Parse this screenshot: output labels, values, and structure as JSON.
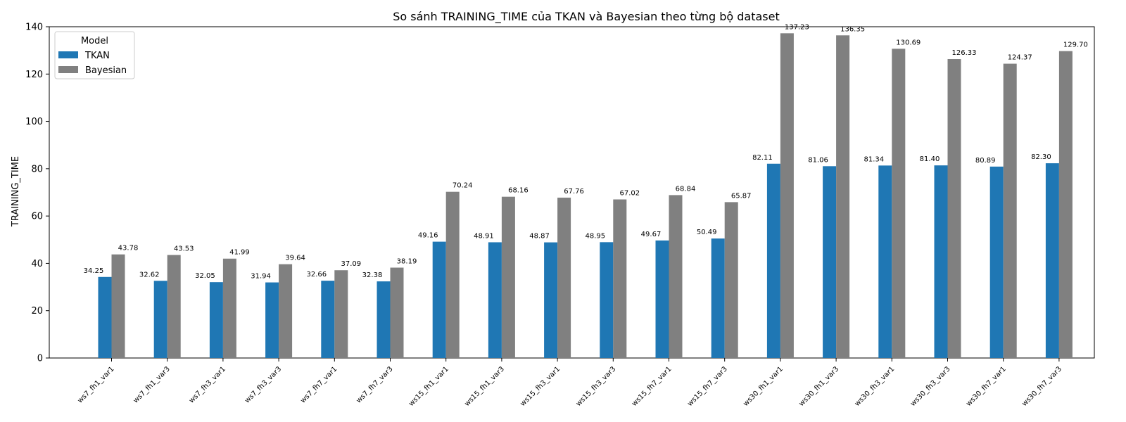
{
  "chart_data": {
    "type": "bar",
    "title": "So sánh TRAINING_TIME của TKAN và Bayesian theo từng bộ dataset",
    "xlabel": "",
    "ylabel": "TRAINING_TIME",
    "ylim": [
      0,
      140
    ],
    "yticks": [
      0,
      20,
      40,
      60,
      80,
      100,
      120,
      140
    ],
    "grid": false,
    "legend": {
      "title": "Model",
      "position": "top-left"
    },
    "categories": [
      "ws7_fh1_var1",
      "ws7_fh1_var3",
      "ws7_fh3_var1",
      "ws7_fh3_var3",
      "ws7_fh7_var1",
      "ws7_fh7_var3",
      "ws15_fh1_var1",
      "ws15_fh1_var3",
      "ws15_fh3_var1",
      "ws15_fh3_var3",
      "ws15_fh7_var1",
      "ws15_fh7_var3",
      "ws30_fh1_var1",
      "ws30_fh1_var3",
      "ws30_fh3_var1",
      "ws30_fh3_var3",
      "ws30_fh7_var1",
      "ws30_fh7_var3"
    ],
    "series": [
      {
        "name": "TKAN",
        "color": "#1f77b4",
        "values": [
          34.25,
          32.62,
          32.05,
          31.94,
          32.66,
          32.38,
          49.16,
          48.91,
          48.87,
          48.95,
          49.67,
          50.49,
          82.11,
          81.06,
          81.34,
          81.4,
          80.89,
          82.3
        ],
        "labels": [
          "34.25",
          "32.62",
          "32.05",
          "31.94",
          "32.66",
          "32.38",
          "49.16",
          "48.91",
          "48.87",
          "48.95",
          "49.67",
          "50.49",
          "82.11",
          "81.06",
          "81.34",
          "81.40",
          "80.89",
          "82.30"
        ]
      },
      {
        "name": "Bayesian",
        "color": "#808080",
        "values": [
          43.78,
          43.53,
          41.99,
          39.64,
          37.09,
          38.19,
          70.24,
          68.16,
          67.76,
          67.02,
          68.84,
          65.87,
          137.23,
          136.35,
          130.69,
          126.33,
          124.37,
          129.7
        ],
        "labels": [
          "43.78",
          "43.53",
          "41.99",
          "39.64",
          "37.09",
          "38.19",
          "70.24",
          "68.16",
          "67.76",
          "67.02",
          "68.84",
          "65.87",
          "137.23",
          "136.35",
          "130.69",
          "126.33",
          "124.37",
          "129.70"
        ]
      }
    ]
  }
}
